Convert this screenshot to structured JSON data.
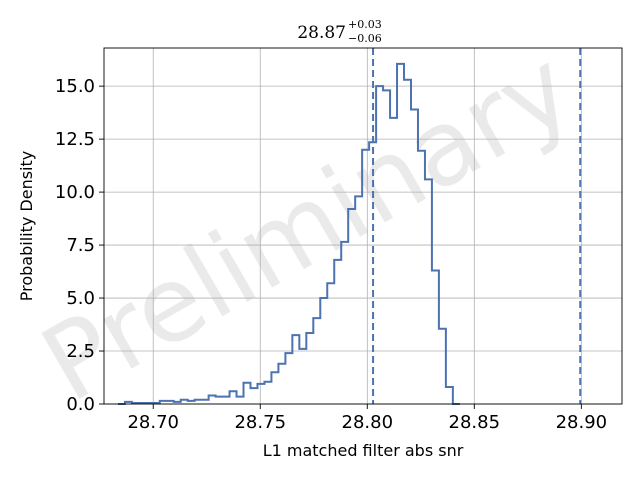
{
  "chart_data": {
    "type": "histogram",
    "title": "",
    "xlabel": "L1 matched filter abs snr",
    "ylabel": "Probability Density",
    "xlim": [
      28.677,
      28.919
    ],
    "ylim": [
      0,
      16.8
    ],
    "x_ticks": [
      28.7,
      28.75,
      28.8,
      28.85,
      28.9
    ],
    "x_tick_labels": [
      "28.70",
      "28.75",
      "28.80",
      "28.85",
      "28.90"
    ],
    "y_ticks": [
      0,
      2.5,
      5,
      7.5,
      10,
      12.5,
      15
    ],
    "y_tick_labels": [
      "0.0",
      "2.5",
      "5.0",
      "7.5",
      "10.0",
      "12.5",
      "15.0"
    ],
    "grid": true,
    "series": [
      {
        "color": "#4c72b0",
        "bin_start": 28.6835,
        "bin_width": 0.00326,
        "values": [
          0.0,
          0.1,
          0.05,
          0.05,
          0.05,
          0.05,
          0.15,
          0.15,
          0.1,
          0.2,
          0.15,
          0.2,
          0.2,
          0.4,
          0.35,
          0.35,
          0.6,
          0.35,
          1.0,
          0.75,
          0.95,
          1.05,
          1.5,
          1.9,
          2.4,
          3.25,
          2.6,
          3.35,
          4.05,
          5.0,
          5.7,
          6.8,
          7.65,
          9.2,
          9.8,
          12.0,
          12.35,
          15.0,
          14.8,
          13.5,
          16.05,
          15.3,
          13.9,
          11.95,
          10.6,
          6.3,
          3.55,
          0.8,
          0.0
        ]
      }
    ],
    "vertical_lines": [
      {
        "x": 28.8027,
        "style": "dashed",
        "color": "#4c72b0"
      },
      {
        "x": 28.8995,
        "style": "dashed",
        "color": "#4c72b0"
      }
    ],
    "annotation": {
      "main": "28.87",
      "superscript": "+0.03",
      "subscript": "−0.06"
    },
    "watermark": "Preliminary"
  }
}
